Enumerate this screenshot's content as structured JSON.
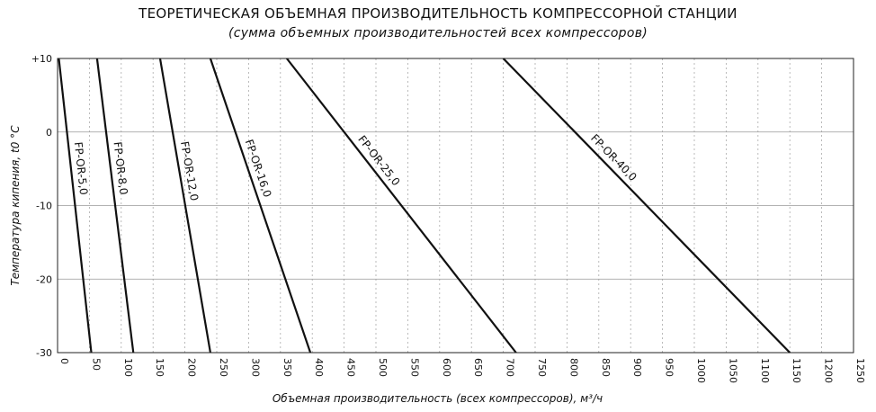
{
  "header": {
    "title": "ТЕОРЕТИЧЕСКАЯ ОБЪЕМНАЯ ПРОИЗВОДИТЕЛЬНОСТЬ КОМПРЕССОРНОЙ СТАНЦИИ",
    "subtitle": "(сумма объемных производительностей всех компрессоров)"
  },
  "colors": {
    "line": "#111111",
    "grid_major": "#999999",
    "grid_minor": "#aaaaaa"
  },
  "chart_data": {
    "type": "line",
    "title": "ТЕОРЕТИЧЕСКАЯ ОБЪЕМНАЯ ПРОИЗВОДИТЕЛЬНОСТЬ КОМПРЕССОРНОЙ СТАНЦИИ",
    "subtitle": "(сумма объемных производительностей всех компрессоров)",
    "xlabel": "Объемная производительность (всех компрессоров), м³/ч",
    "ylabel": "Температура кипения, t0 °C",
    "xlim": [
      0,
      1250
    ],
    "ylim": [
      -30,
      10
    ],
    "x_ticks": [
      0,
      50,
      100,
      150,
      200,
      250,
      300,
      350,
      400,
      450,
      500,
      550,
      600,
      650,
      700,
      750,
      800,
      850,
      900,
      950,
      1000,
      1050,
      1100,
      1150,
      1200,
      1250
    ],
    "y_ticks": [
      10,
      0,
      -10,
      -20,
      -30
    ],
    "y_tick_labels": [
      "+10",
      "0",
      "-10",
      "-20",
      "-30"
    ],
    "grid": {
      "x": "dotted",
      "y": "solid"
    },
    "series": [
      {
        "name": "FP-OR-5,0",
        "x": [
          2,
          53
        ],
        "y": [
          10,
          -30
        ]
      },
      {
        "name": "FP-OR-8,0",
        "x": [
          62,
          119
        ],
        "y": [
          10,
          -30
        ]
      },
      {
        "name": "FP-OR-12,0",
        "x": [
          161,
          240
        ],
        "y": [
          10,
          -30
        ]
      },
      {
        "name": "FP-OR-16,0",
        "x": [
          240,
          397
        ],
        "y": [
          10,
          -30
        ]
      },
      {
        "name": "FP-OR-25,0",
        "x": [
          360,
          720
        ],
        "y": [
          10,
          -30
        ]
      },
      {
        "name": "FP-OR-40,0",
        "x": [
          700,
          1150
        ],
        "y": [
          10,
          -30
        ]
      }
    ]
  }
}
